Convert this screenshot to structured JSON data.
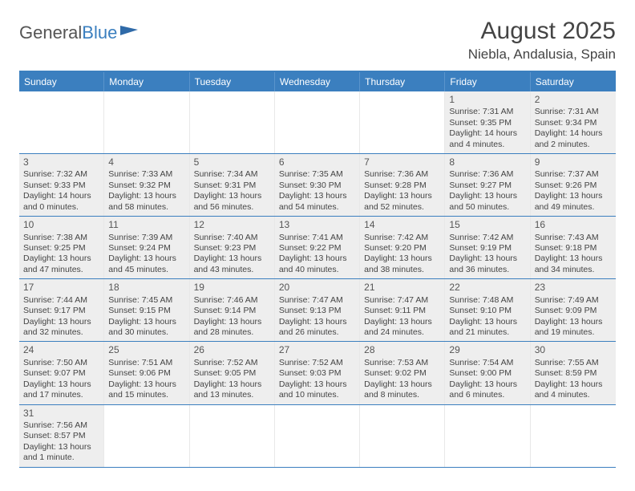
{
  "logo": {
    "word1": "General",
    "word2": "Blue",
    "flag_color": "#2f6aa8"
  },
  "title": "August 2025",
  "location": "Niebla, Andalusia, Spain",
  "colors": {
    "header_bar": "#3b7fbf",
    "header_text": "#ffffff",
    "cell_fill": "#eeeeee",
    "row_border": "#3b7fbf",
    "text": "#444444"
  },
  "dow": [
    "Sunday",
    "Monday",
    "Tuesday",
    "Wednesday",
    "Thursday",
    "Friday",
    "Saturday"
  ],
  "weeks": [
    [
      null,
      null,
      null,
      null,
      null,
      {
        "n": "1",
        "sr": "Sunrise: 7:31 AM",
        "ss": "Sunset: 9:35 PM",
        "dl": "Daylight: 14 hours and 4 minutes."
      },
      {
        "n": "2",
        "sr": "Sunrise: 7:31 AM",
        "ss": "Sunset: 9:34 PM",
        "dl": "Daylight: 14 hours and 2 minutes."
      }
    ],
    [
      {
        "n": "3",
        "sr": "Sunrise: 7:32 AM",
        "ss": "Sunset: 9:33 PM",
        "dl": "Daylight: 14 hours and 0 minutes."
      },
      {
        "n": "4",
        "sr": "Sunrise: 7:33 AM",
        "ss": "Sunset: 9:32 PM",
        "dl": "Daylight: 13 hours and 58 minutes."
      },
      {
        "n": "5",
        "sr": "Sunrise: 7:34 AM",
        "ss": "Sunset: 9:31 PM",
        "dl": "Daylight: 13 hours and 56 minutes."
      },
      {
        "n": "6",
        "sr": "Sunrise: 7:35 AM",
        "ss": "Sunset: 9:30 PM",
        "dl": "Daylight: 13 hours and 54 minutes."
      },
      {
        "n": "7",
        "sr": "Sunrise: 7:36 AM",
        "ss": "Sunset: 9:28 PM",
        "dl": "Daylight: 13 hours and 52 minutes."
      },
      {
        "n": "8",
        "sr": "Sunrise: 7:36 AM",
        "ss": "Sunset: 9:27 PM",
        "dl": "Daylight: 13 hours and 50 minutes."
      },
      {
        "n": "9",
        "sr": "Sunrise: 7:37 AM",
        "ss": "Sunset: 9:26 PM",
        "dl": "Daylight: 13 hours and 49 minutes."
      }
    ],
    [
      {
        "n": "10",
        "sr": "Sunrise: 7:38 AM",
        "ss": "Sunset: 9:25 PM",
        "dl": "Daylight: 13 hours and 47 minutes."
      },
      {
        "n": "11",
        "sr": "Sunrise: 7:39 AM",
        "ss": "Sunset: 9:24 PM",
        "dl": "Daylight: 13 hours and 45 minutes."
      },
      {
        "n": "12",
        "sr": "Sunrise: 7:40 AM",
        "ss": "Sunset: 9:23 PM",
        "dl": "Daylight: 13 hours and 43 minutes."
      },
      {
        "n": "13",
        "sr": "Sunrise: 7:41 AM",
        "ss": "Sunset: 9:22 PM",
        "dl": "Daylight: 13 hours and 40 minutes."
      },
      {
        "n": "14",
        "sr": "Sunrise: 7:42 AM",
        "ss": "Sunset: 9:20 PM",
        "dl": "Daylight: 13 hours and 38 minutes."
      },
      {
        "n": "15",
        "sr": "Sunrise: 7:42 AM",
        "ss": "Sunset: 9:19 PM",
        "dl": "Daylight: 13 hours and 36 minutes."
      },
      {
        "n": "16",
        "sr": "Sunrise: 7:43 AM",
        "ss": "Sunset: 9:18 PM",
        "dl": "Daylight: 13 hours and 34 minutes."
      }
    ],
    [
      {
        "n": "17",
        "sr": "Sunrise: 7:44 AM",
        "ss": "Sunset: 9:17 PM",
        "dl": "Daylight: 13 hours and 32 minutes."
      },
      {
        "n": "18",
        "sr": "Sunrise: 7:45 AM",
        "ss": "Sunset: 9:15 PM",
        "dl": "Daylight: 13 hours and 30 minutes."
      },
      {
        "n": "19",
        "sr": "Sunrise: 7:46 AM",
        "ss": "Sunset: 9:14 PM",
        "dl": "Daylight: 13 hours and 28 minutes."
      },
      {
        "n": "20",
        "sr": "Sunrise: 7:47 AM",
        "ss": "Sunset: 9:13 PM",
        "dl": "Daylight: 13 hours and 26 minutes."
      },
      {
        "n": "21",
        "sr": "Sunrise: 7:47 AM",
        "ss": "Sunset: 9:11 PM",
        "dl": "Daylight: 13 hours and 24 minutes."
      },
      {
        "n": "22",
        "sr": "Sunrise: 7:48 AM",
        "ss": "Sunset: 9:10 PM",
        "dl": "Daylight: 13 hours and 21 minutes."
      },
      {
        "n": "23",
        "sr": "Sunrise: 7:49 AM",
        "ss": "Sunset: 9:09 PM",
        "dl": "Daylight: 13 hours and 19 minutes."
      }
    ],
    [
      {
        "n": "24",
        "sr": "Sunrise: 7:50 AM",
        "ss": "Sunset: 9:07 PM",
        "dl": "Daylight: 13 hours and 17 minutes."
      },
      {
        "n": "25",
        "sr": "Sunrise: 7:51 AM",
        "ss": "Sunset: 9:06 PM",
        "dl": "Daylight: 13 hours and 15 minutes."
      },
      {
        "n": "26",
        "sr": "Sunrise: 7:52 AM",
        "ss": "Sunset: 9:05 PM",
        "dl": "Daylight: 13 hours and 13 minutes."
      },
      {
        "n": "27",
        "sr": "Sunrise: 7:52 AM",
        "ss": "Sunset: 9:03 PM",
        "dl": "Daylight: 13 hours and 10 minutes."
      },
      {
        "n": "28",
        "sr": "Sunrise: 7:53 AM",
        "ss": "Sunset: 9:02 PM",
        "dl": "Daylight: 13 hours and 8 minutes."
      },
      {
        "n": "29",
        "sr": "Sunrise: 7:54 AM",
        "ss": "Sunset: 9:00 PM",
        "dl": "Daylight: 13 hours and 6 minutes."
      },
      {
        "n": "30",
        "sr": "Sunrise: 7:55 AM",
        "ss": "Sunset: 8:59 PM",
        "dl": "Daylight: 13 hours and 4 minutes."
      }
    ],
    [
      {
        "n": "31",
        "sr": "Sunrise: 7:56 AM",
        "ss": "Sunset: 8:57 PM",
        "dl": "Daylight: 13 hours and 1 minute."
      },
      null,
      null,
      null,
      null,
      null,
      null
    ]
  ]
}
